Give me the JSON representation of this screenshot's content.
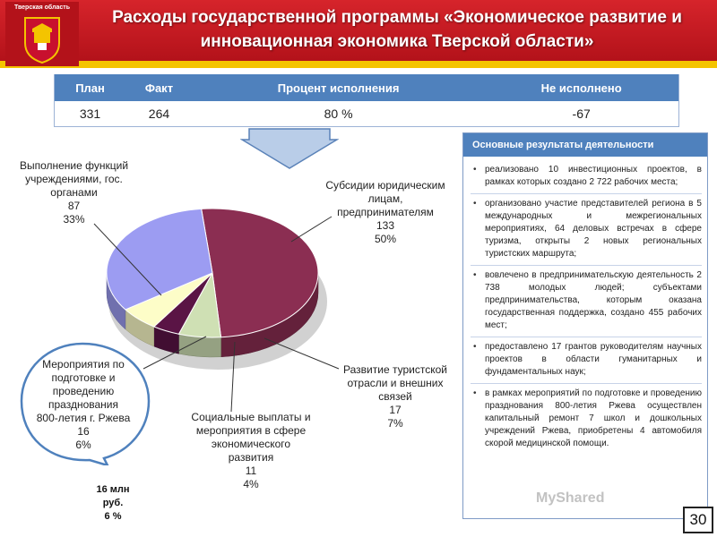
{
  "header": {
    "region_caption": "Тверская область",
    "title": "Расходы государственной программы «Экономическое развитие и инновационная экономика Тверской области»"
  },
  "summary_table": {
    "headers": [
      "План",
      "Факт",
      "Процент исполнения",
      "Не исполнено"
    ],
    "values": [
      "331",
      "264",
      "80 %",
      "-67"
    ]
  },
  "chart_data": {
    "type": "pie",
    "slices": [
      {
        "label": "Субсидии юридическим лицам, предпринимателям",
        "value": 133,
        "percent": "50%",
        "color": "#8b2e52"
      },
      {
        "label": "Развитие туристской отрасли и внешних связей",
        "value": 17,
        "percent": "7%",
        "color": "#cfe0b4"
      },
      {
        "label": "Социальные выплаты и мероприятия в сфере экономического развития",
        "value": 11,
        "percent": "4%",
        "color": "#5a1445"
      },
      {
        "label": "Мероприятия по подготовке и проведению празднования 800-летия г. Ржева",
        "value": 16,
        "percent": "6%",
        "color": "#fdfdc8"
      },
      {
        "label": "Выполнение функций учреждениями, гос. органами",
        "value": 87,
        "percent": "33%",
        "color": "#9c9cf2"
      }
    ]
  },
  "labels": {
    "subsidies": [
      "Субсидии юридическим",
      "лицам,",
      "предпринимателям",
      "133",
      "50%"
    ],
    "tourism": [
      "Развитие туристской",
      "отрасли и внешних",
      "связей",
      "17",
      "7%"
    ],
    "social": [
      "Социальные выплаты и",
      "мероприятия в сфере",
      "экономического",
      "развития",
      "11",
      "4%"
    ],
    "functions": [
      "Выполнение функций",
      "учреждениями, гос.",
      "органами",
      "87",
      "33%"
    ],
    "rzhev": [
      "Мероприятия по",
      "подготовке и",
      "проведению",
      "празднования",
      "800-летия г. Ржева",
      "16",
      "6%"
    ]
  },
  "note": [
    "16 млн",
    "руб.",
    "6 %"
  ],
  "results": {
    "heading": "Основные результаты деятельности",
    "items": [
      "реализовано 10 инвестиционных проектов, в рамках которых создано 2 722 рабочих места;",
      "организовано участие представителей региона в 5 международных и межрегиональных мероприятиях, 64 деловых встречах в сфере туризма, открыты 2 новых региональных туристских маршрута;",
      "вовлечено в предпринимательскую деятельность 2 738 молодых людей; субъектами предпринимательства, которым оказана государственная поддержка, создано 455 рабочих мест;",
      "предоставлено 17 грантов руководителям научных проектов в области гуманитарных и фундаментальных наук;",
      "в рамках мероприятий по подготовке и проведению празднования 800-летия Ржева осуществлен капитальный ремонт 7 школ и дошкольных учреждений Ржева, приобретены 4 автомобиля скорой медицинской помощи."
    ]
  },
  "page_number": "30",
  "watermark": "MyShared"
}
